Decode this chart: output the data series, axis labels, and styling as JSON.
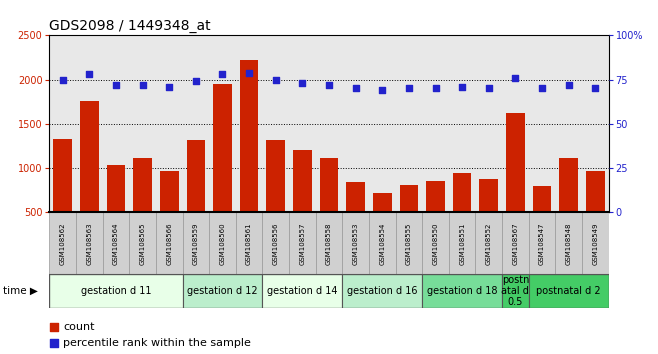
{
  "title": "GDS2098 / 1449348_at",
  "samples": [
    "GSM108562",
    "GSM108563",
    "GSM108564",
    "GSM108565",
    "GSM108566",
    "GSM108559",
    "GSM108560",
    "GSM108561",
    "GSM108556",
    "GSM108557",
    "GSM108558",
    "GSM108553",
    "GSM108554",
    "GSM108555",
    "GSM108550",
    "GSM108551",
    "GSM108552",
    "GSM108567",
    "GSM108547",
    "GSM108548",
    "GSM108549"
  ],
  "counts": [
    1330,
    1760,
    1040,
    1110,
    970,
    1320,
    1950,
    2220,
    1320,
    1200,
    1120,
    840,
    720,
    810,
    860,
    950,
    880,
    1620,
    800,
    1120,
    970
  ],
  "percentiles": [
    75,
    78,
    72,
    72,
    71,
    74,
    78,
    79,
    75,
    73,
    72,
    70,
    69,
    70,
    70,
    71,
    70,
    76,
    70,
    72,
    70
  ],
  "bar_color": "#cc2200",
  "dot_color": "#2222cc",
  "groups": [
    {
      "label": "gestation d 11",
      "start": 0,
      "end": 5,
      "color": "#e8ffe8"
    },
    {
      "label": "gestation d 12",
      "start": 5,
      "end": 8,
      "color": "#bbeecc"
    },
    {
      "label": "gestation d 14",
      "start": 8,
      "end": 11,
      "color": "#e8ffe8"
    },
    {
      "label": "gestation d 16",
      "start": 11,
      "end": 14,
      "color": "#bbeecc"
    },
    {
      "label": "gestation d 18",
      "start": 14,
      "end": 17,
      "color": "#77dd99"
    },
    {
      "label": "postn\natal d\n0.5",
      "start": 17,
      "end": 18,
      "color": "#44cc66"
    },
    {
      "label": "postnatal d 2",
      "start": 18,
      "end": 21,
      "color": "#44cc66"
    }
  ],
  "ylim_left": [
    500,
    2500
  ],
  "ylim_right": [
    0,
    100
  ],
  "yticks_left": [
    500,
    1000,
    1500,
    2000,
    2500
  ],
  "yticks_right": [
    0,
    25,
    50,
    75,
    100
  ],
  "background_color": "#ffffff",
  "plot_bg_color": "#e8e8e8",
  "label_bg_color": "#d0d0d0",
  "grid_color": "#000000",
  "title_fontsize": 10,
  "tick_fontsize": 7,
  "sample_fontsize": 5,
  "group_fontsize": 7,
  "legend_items": [
    "count",
    "percentile rank within the sample"
  ]
}
